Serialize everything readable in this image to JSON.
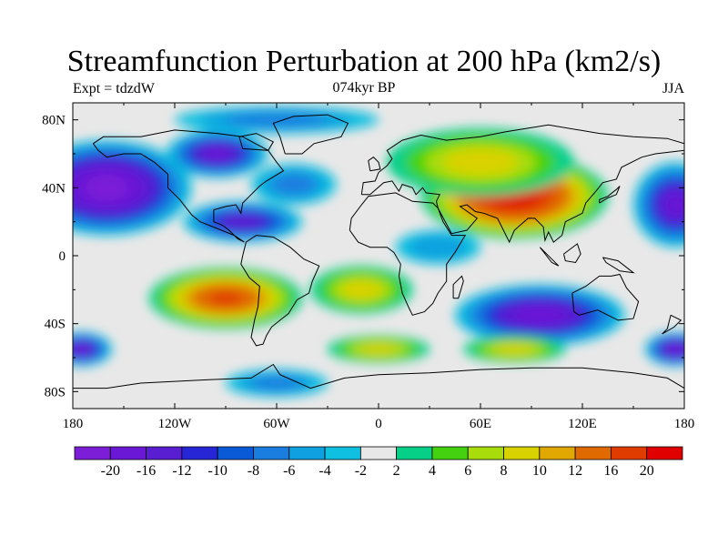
{
  "title": "Streamfunction Perturbation at 200 hPa (km2/s)",
  "left_string": "Expt = tdzdW",
  "center_string": "074kyr BP",
  "right_string": "JJA",
  "map": {
    "projection": "cylindrical-equidistant",
    "lon_range": [
      -180,
      180
    ],
    "lat_range": [
      -90,
      90
    ],
    "lat_ticks": [
      {
        "value": 80,
        "label": "80N"
      },
      {
        "value": 40,
        "label": "40N"
      },
      {
        "value": 0,
        "label": "0"
      },
      {
        "value": -40,
        "label": "40S"
      },
      {
        "value": -80,
        "label": "80S"
      }
    ],
    "lon_ticks": [
      {
        "value": -180,
        "label": "180"
      },
      {
        "value": -120,
        "label": "120W"
      },
      {
        "value": -60,
        "label": "60W"
      },
      {
        "value": 0,
        "label": "0"
      },
      {
        "value": 60,
        "label": "60E"
      },
      {
        "value": 120,
        "label": "120E"
      },
      {
        "value": 180,
        "label": "180"
      }
    ]
  },
  "colorbar": {
    "colors": [
      "#7c1ed8",
      "#6a18d6",
      "#5a1ed2",
      "#2626d6",
      "#0a5ad8",
      "#1a7ee0",
      "#0ea0e0",
      "#10c0e0",
      "#e8e8e8",
      "#06d088",
      "#44d210",
      "#a8dc0a",
      "#d8d200",
      "#e0a800",
      "#e06a00",
      "#e03c00",
      "#e00000"
    ],
    "labels": [
      "-20",
      "-16",
      "-12",
      "-10",
      "-8",
      "-6",
      "-4",
      "-2",
      "2",
      "4",
      "6",
      "8",
      "10",
      "12",
      "16",
      "20"
    ]
  },
  "features": [
    {
      "name": "north-pacific-low",
      "lon": -160,
      "lat": 40,
      "value": -22,
      "rx": 50,
      "ry": 28
    },
    {
      "name": "canada-low",
      "lon": -95,
      "lat": 60,
      "value": -16,
      "rx": 30,
      "ry": 14
    },
    {
      "name": "caribbean-low",
      "lon": -80,
      "lat": 20,
      "value": -14,
      "rx": 35,
      "ry": 12
    },
    {
      "name": "atlantic-low-ring",
      "lon": -50,
      "lat": 42,
      "value": -6,
      "rx": 25,
      "ry": 12
    },
    {
      "name": "asian-high",
      "lon": 80,
      "lat": 35,
      "value": 22,
      "rx": 55,
      "ry": 25
    },
    {
      "name": "eurasian-high",
      "lon": 60,
      "lat": 55,
      "value": 8,
      "rx": 55,
      "ry": 20
    },
    {
      "name": "australian-low",
      "lon": 95,
      "lat": -35,
      "value": -18,
      "rx": 50,
      "ry": 18
    },
    {
      "name": "south-pacific-high",
      "lon": -90,
      "lat": -25,
      "value": 16,
      "rx": 45,
      "ry": 18
    },
    {
      "name": "south-atlantic-high",
      "lon": -10,
      "lat": -20,
      "value": 8,
      "rx": 30,
      "ry": 14
    },
    {
      "name": "west-pacific-low",
      "lon": 175,
      "lat": 30,
      "value": -16,
      "rx": 25,
      "ry": 25
    },
    {
      "name": "southern-ocean-low-east",
      "lon": 175,
      "lat": -55,
      "value": -18,
      "rx": 18,
      "ry": 10
    },
    {
      "name": "southern-ocean-low-west",
      "lon": -175,
      "lat": -55,
      "value": -16,
      "rx": 18,
      "ry": 10
    },
    {
      "name": "south-indian-high",
      "lon": 80,
      "lat": -55,
      "value": 8,
      "rx": 30,
      "ry": 8
    },
    {
      "name": "south-atlantic-high-2",
      "lon": 0,
      "lat": -55,
      "value": 8,
      "rx": 30,
      "ry": 8
    },
    {
      "name": "antarctic-low",
      "lon": -60,
      "lat": -75,
      "value": -6,
      "rx": 30,
      "ry": 8
    },
    {
      "name": "africa-low",
      "lon": 35,
      "lat": 5,
      "value": -4,
      "rx": 25,
      "ry": 10
    },
    {
      "name": "arctic-low",
      "lon": -60,
      "lat": 80,
      "value": -6,
      "rx": 60,
      "ry": 8
    }
  ]
}
